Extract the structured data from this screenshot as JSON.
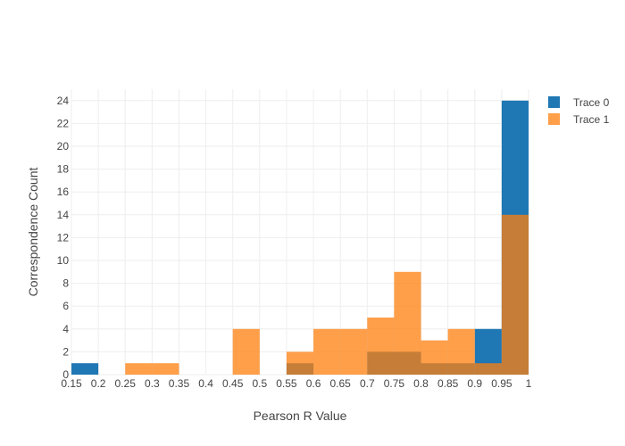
{
  "chart_data": {
    "type": "bar",
    "title": "",
    "xlabel": "Pearson R Value",
    "ylabel": "Correspondence Count",
    "xlim": [
      0.15,
      1.0
    ],
    "ylim": [
      0,
      25
    ],
    "bin_size": 0.05,
    "x_ticks": [
      "0.15",
      "0.2",
      "0.25",
      "0.3",
      "0.35",
      "0.4",
      "0.45",
      "0.5",
      "0.55",
      "0.6",
      "0.65",
      "0.7",
      "0.75",
      "0.8",
      "0.85",
      "0.9",
      "0.95",
      "1"
    ],
    "y_ticks": [
      "0",
      "2",
      "4",
      "6",
      "8",
      "10",
      "12",
      "14",
      "16",
      "18",
      "20",
      "22",
      "24"
    ],
    "grid": true,
    "legend_position": "top-right",
    "bins": [
      [
        0.15,
        0.2
      ],
      [
        0.2,
        0.25
      ],
      [
        0.25,
        0.3
      ],
      [
        0.3,
        0.35
      ],
      [
        0.35,
        0.4
      ],
      [
        0.4,
        0.45
      ],
      [
        0.45,
        0.5
      ],
      [
        0.5,
        0.55
      ],
      [
        0.55,
        0.6
      ],
      [
        0.6,
        0.65
      ],
      [
        0.65,
        0.7
      ],
      [
        0.7,
        0.75
      ],
      [
        0.75,
        0.8
      ],
      [
        0.8,
        0.85
      ],
      [
        0.85,
        0.9
      ],
      [
        0.9,
        0.95
      ],
      [
        0.95,
        1.0
      ]
    ],
    "series": [
      {
        "name": "Trace 0",
        "color": "#1f77b4",
        "values": [
          1,
          0,
          0,
          0,
          0,
          0,
          0,
          0,
          1,
          0,
          0,
          2,
          2,
          1,
          1,
          4,
          24
        ]
      },
      {
        "name": "Trace 1",
        "color": "#ff7f0e",
        "values": [
          0,
          0,
          1,
          1,
          0,
          0,
          4,
          0,
          2,
          4,
          4,
          5,
          9,
          3,
          4,
          1,
          14
        ]
      }
    ]
  }
}
